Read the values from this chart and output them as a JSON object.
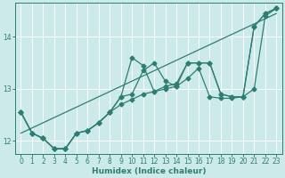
{
  "xlabel": "Humidex (Indice chaleur)",
  "bg_color": "#cdeaea",
  "line_color": "#2e7d72",
  "grid_color": "#b8d8d8",
  "xlim": [
    -0.5,
    23.5
  ],
  "ylim": [
    11.75,
    14.65
  ],
  "yticks": [
    12,
    13,
    14
  ],
  "xticks": [
    0,
    1,
    2,
    3,
    4,
    5,
    6,
    7,
    8,
    9,
    10,
    11,
    12,
    13,
    14,
    15,
    16,
    17,
    18,
    19,
    20,
    21,
    22,
    23
  ],
  "series_volatile1_x": [
    0,
    1,
    2,
    3,
    4,
    5,
    6,
    7,
    8,
    9,
    10,
    11,
    12,
    13,
    14,
    15,
    16,
    17,
    18,
    19,
    20,
    21,
    22,
    23
  ],
  "series_volatile1_y": [
    12.55,
    12.15,
    12.05,
    11.85,
    11.85,
    12.15,
    12.2,
    12.35,
    12.55,
    12.85,
    13.6,
    13.45,
    12.95,
    13.05,
    13.1,
    13.5,
    13.5,
    13.5,
    12.9,
    12.85,
    12.85,
    14.2,
    14.45,
    14.55
  ],
  "series_volatile2_x": [
    0,
    1,
    2,
    3,
    4,
    5,
    6,
    7,
    8,
    9,
    10,
    11,
    12,
    13,
    14,
    15,
    16,
    17,
    18,
    19,
    20,
    21,
    22,
    23
  ],
  "series_volatile2_y": [
    12.55,
    12.15,
    12.05,
    11.85,
    11.85,
    12.15,
    12.2,
    12.35,
    12.55,
    12.85,
    12.9,
    13.35,
    13.5,
    13.15,
    13.05,
    13.5,
    13.5,
    13.5,
    12.9,
    12.85,
    12.85,
    14.2,
    14.45,
    14.55
  ],
  "series_smooth_x": [
    0,
    1,
    2,
    3,
    4,
    5,
    6,
    7,
    8,
    9,
    10,
    11,
    12,
    13,
    14,
    15,
    16,
    17,
    18,
    19,
    20,
    21,
    22,
    23
  ],
  "series_smooth_y": [
    12.55,
    12.15,
    12.05,
    11.85,
    11.85,
    12.15,
    12.2,
    12.35,
    12.55,
    12.7,
    12.8,
    12.9,
    12.95,
    13.0,
    13.05,
    13.2,
    13.4,
    12.85,
    12.82,
    12.82,
    12.85,
    13.0,
    14.4,
    14.55
  ],
  "trend_x": [
    0,
    23
  ],
  "trend_y": [
    12.15,
    14.45
  ],
  "marker_size": 2.5,
  "line_width": 0.9
}
